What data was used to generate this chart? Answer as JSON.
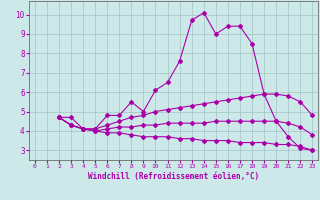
{
  "xlabel": "Windchill (Refroidissement éolien,°C)",
  "xlim": [
    -0.5,
    23.5
  ],
  "ylim": [
    2.5,
    10.7
  ],
  "xticks": [
    0,
    1,
    2,
    3,
    4,
    5,
    6,
    7,
    8,
    9,
    10,
    11,
    12,
    13,
    14,
    15,
    16,
    17,
    18,
    19,
    20,
    21,
    22,
    23
  ],
  "yticks": [
    3,
    4,
    5,
    6,
    7,
    8,
    9,
    10
  ],
  "bg_color": "#cce8e8",
  "line_color": "#aa00aa",
  "x_start": 2,
  "lines": [
    [
      4.7,
      4.7,
      4.1,
      4.1,
      4.8,
      4.8,
      5.5,
      5.0,
      6.1,
      6.5,
      7.6,
      9.7,
      10.1,
      9.0,
      9.4,
      9.4,
      8.5,
      5.9,
      4.5,
      3.7,
      3.1,
      3.0
    ],
    [
      4.7,
      4.3,
      4.1,
      4.1,
      4.3,
      4.5,
      4.7,
      4.8,
      5.0,
      5.1,
      5.2,
      5.3,
      5.4,
      5.5,
      5.6,
      5.7,
      5.8,
      5.9,
      5.9,
      5.8,
      5.5,
      4.8
    ],
    [
      4.7,
      4.3,
      4.1,
      4.0,
      4.1,
      4.2,
      4.2,
      4.3,
      4.3,
      4.4,
      4.4,
      4.4,
      4.4,
      4.5,
      4.5,
      4.5,
      4.5,
      4.5,
      4.5,
      4.4,
      4.2,
      3.8
    ],
    [
      4.7,
      4.3,
      4.1,
      4.0,
      3.9,
      3.9,
      3.8,
      3.7,
      3.7,
      3.7,
      3.6,
      3.6,
      3.5,
      3.5,
      3.5,
      3.4,
      3.4,
      3.4,
      3.3,
      3.3,
      3.2,
      3.0
    ]
  ]
}
